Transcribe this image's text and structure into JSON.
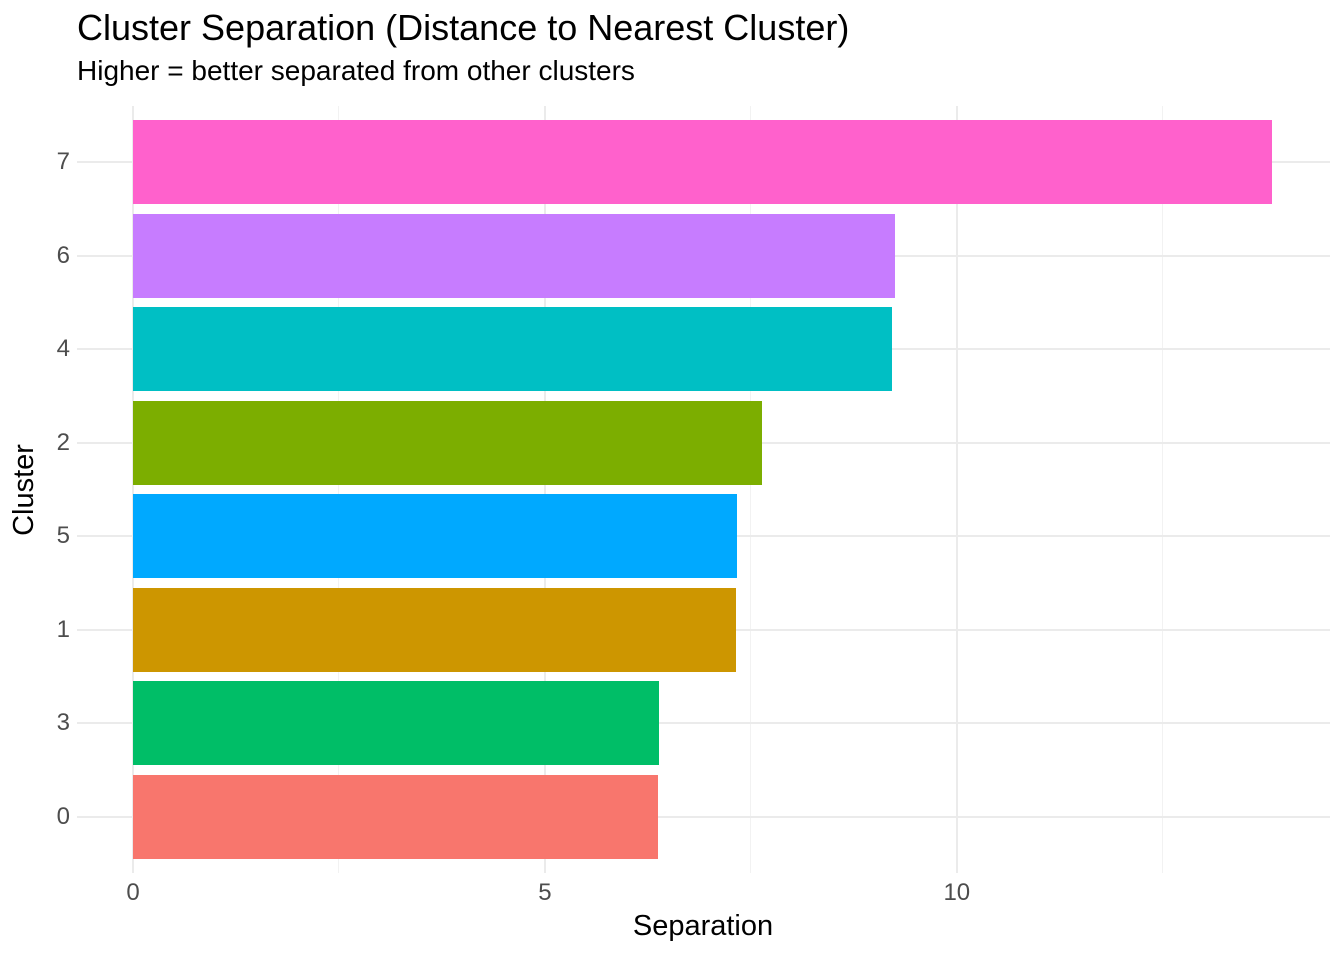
{
  "chart_data": {
    "type": "bar",
    "orientation": "horizontal",
    "title": "Cluster Separation (Distance to Nearest Cluster)",
    "subtitle": "Higher = better separated from other clusters",
    "xlabel": "Separation",
    "ylabel": "Cluster",
    "categories": [
      "7",
      "6",
      "4",
      "2",
      "5",
      "1",
      "3",
      "0"
    ],
    "values": [
      13.83,
      9.25,
      9.21,
      7.63,
      7.33,
      7.32,
      6.39,
      6.37
    ],
    "bar_colors": [
      "#FF61CC",
      "#C77CFF",
      "#00BFC4",
      "#7CAE00",
      "#00A9FF",
      "#CD9600",
      "#00BE67",
      "#F8766D"
    ],
    "x_ticks": [
      0,
      5,
      10
    ],
    "x_tick_labels": [
      "0",
      "5",
      "10"
    ],
    "x_minor_ticks": [
      2.5,
      7.5,
      12.5
    ],
    "xlim": [
      -0.68,
      14.53
    ],
    "grid": true,
    "legend": "none",
    "style": {
      "background": "#FFFFFF",
      "major_grid_color": "#EBEBEB",
      "minor_grid_color": "#F2F2F2",
      "tick_label_color": "#4D4D4D",
      "text_color": "#000000"
    }
  }
}
